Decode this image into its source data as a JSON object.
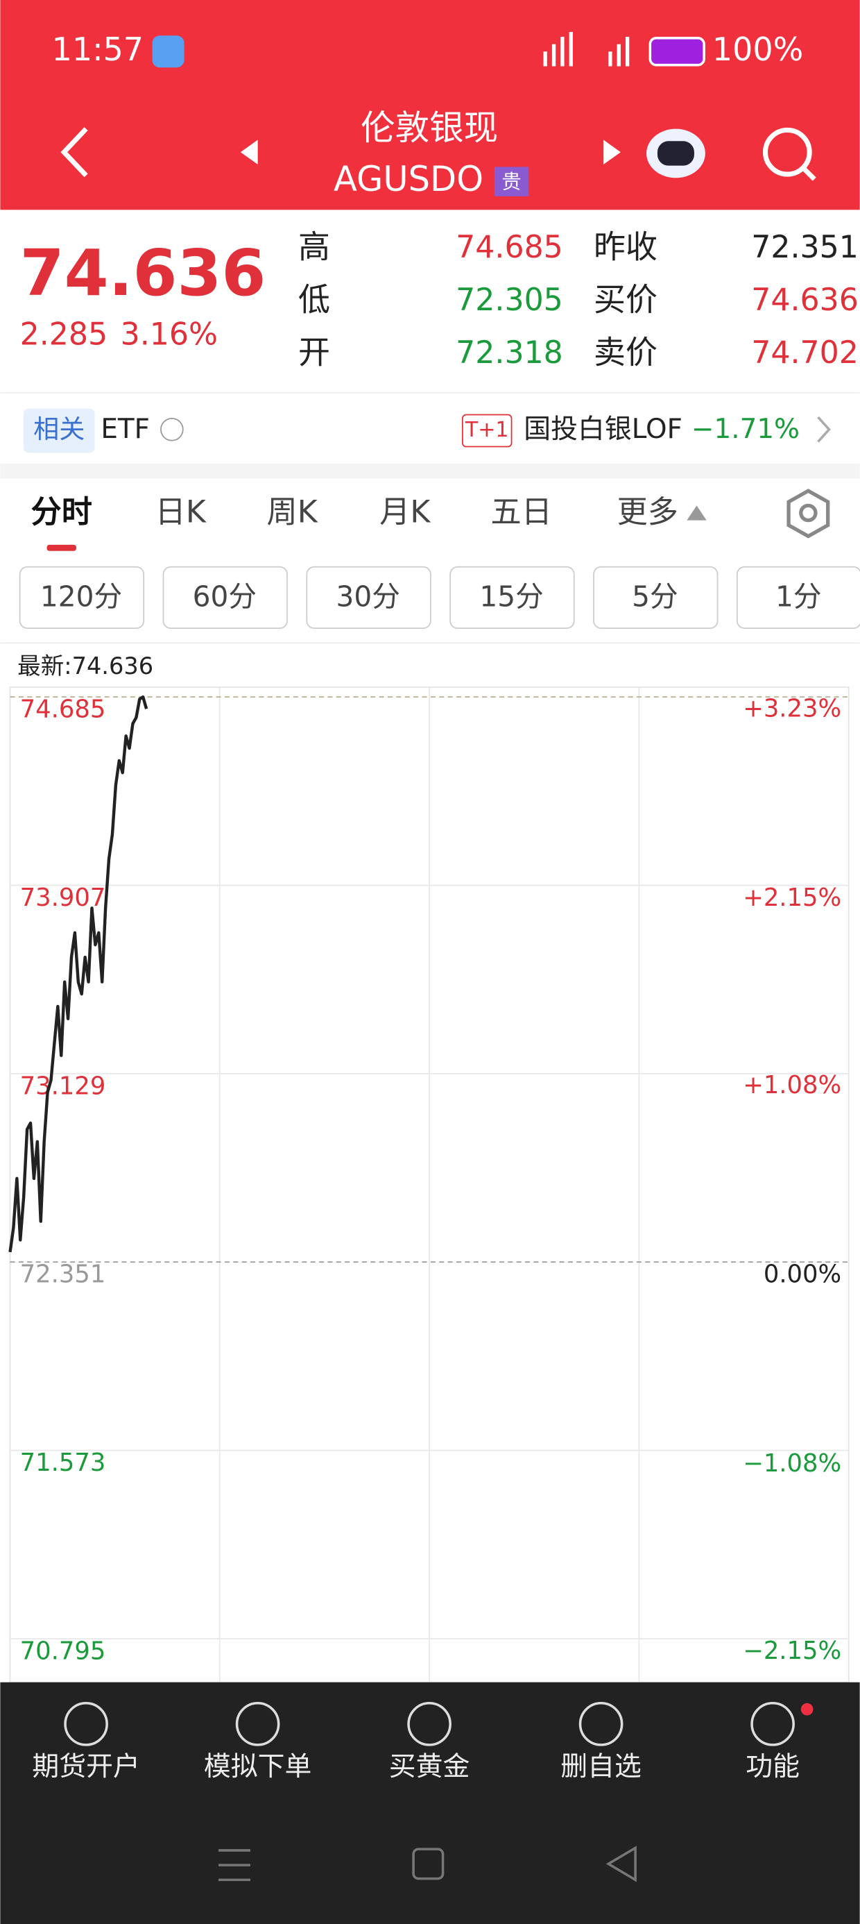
{
  "status": {
    "time": "11:57",
    "battery": "100%"
  },
  "header": {
    "title": "伦敦银现",
    "code": "AGUSDO",
    "badge": "贵"
  },
  "quote": {
    "price": "74.636",
    "change": "2.285",
    "change_pct": "3.16%",
    "stats": [
      {
        "label": "高",
        "value": "74.685"
      },
      {
        "label": "低",
        "value": "72.305"
      },
      {
        "label": "开",
        "value": "72.318"
      }
    ],
    "stats2": [
      {
        "label": "昨收",
        "value": "72.351"
      },
      {
        "label": "买价",
        "value": "74.636"
      },
      {
        "label": "卖价",
        "value": "74.702"
      }
    ]
  },
  "related": {
    "tag": "相关",
    "etf": "ETF",
    "badge": "T+1",
    "fund": "国投白银LOF",
    "change": "−1.71%"
  },
  "tabs": [
    "分时",
    "日K",
    "周K",
    "月K",
    "五日",
    "更多"
  ],
  "intervals": [
    "120分",
    "60分",
    "30分",
    "15分",
    "5分",
    "1分"
  ],
  "chart_data": {
    "type": "line",
    "latest": "最新:74.636",
    "x": [
      0,
      1,
      2,
      3,
      4,
      5,
      6,
      7,
      8,
      9,
      10,
      11,
      12,
      13,
      14,
      15,
      16,
      17,
      18,
      19,
      20,
      21,
      22,
      23,
      24,
      25,
      26,
      27,
      28,
      29,
      30,
      31,
      32,
      33,
      34,
      35,
      36,
      37,
      38,
      39,
      40
    ],
    "series": [
      {
        "color": "#222222",
        "values": [
          72.392,
          72.493,
          72.696,
          72.442,
          72.62,
          72.899,
          72.925,
          72.696,
          72.848,
          72.519,
          72.848,
          73.052,
          73.102,
          73.255,
          73.407,
          73.204,
          73.508,
          73.356,
          73.61,
          73.711,
          73.508,
          73.458,
          73.61,
          73.508,
          73.813,
          73.661,
          73.711,
          73.508,
          73.813,
          74.016,
          74.118,
          74.321,
          74.422,
          74.372,
          74.524,
          74.473,
          74.575,
          74.6,
          74.676,
          74.685,
          74.636
        ]
      }
    ],
    "xlim": [
      0,
      246
    ],
    "ylim": [
      70.615,
      74.685
    ],
    "yticks": [
      74.685,
      73.907,
      73.129,
      72.351,
      71.573,
      70.795
    ],
    "y2lim": [
      -2.4,
      3.226
    ],
    "y2ticks": [
      {
        "value": 3.23,
        "label": "+3.23%"
      },
      {
        "value": 2.15,
        "label": "+2.15%"
      },
      {
        "value": 1.08,
        "label": "+1.08%"
      },
      {
        "value": 0,
        "label": "0.00%"
      },
      {
        "value": -1.08,
        "label": "−1.08%"
      },
      {
        "value": -2.15,
        "label": "−2.15%"
      }
    ],
    "grid": true
  },
  "nav": [
    "期货开户",
    "模拟下单",
    "买黄金",
    "删自选",
    "功能"
  ]
}
